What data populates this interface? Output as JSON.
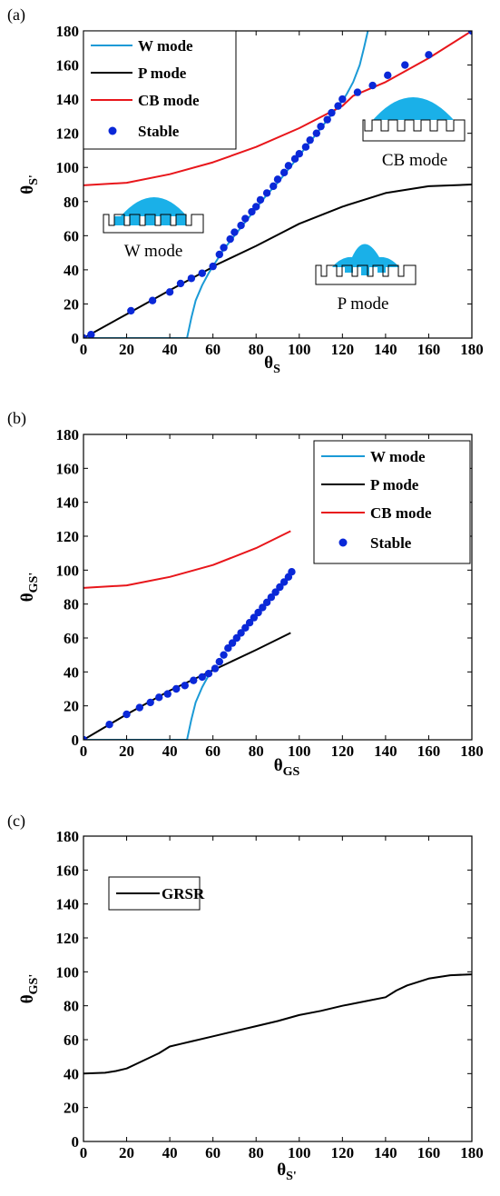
{
  "chart_data": [
    {
      "panel_label": "(a)",
      "type": "line",
      "xlabel": "θS",
      "ylabel": "θS'",
      "xlim": [
        0,
        180
      ],
      "ylim": [
        0,
        180
      ],
      "xticks": [
        0,
        20,
        40,
        60,
        80,
        100,
        120,
        140,
        160,
        180
      ],
      "yticks": [
        0,
        20,
        40,
        60,
        80,
        100,
        120,
        140,
        160,
        180
      ],
      "legend": "top-left",
      "series": [
        {
          "name": "W mode",
          "color": "#1b9ad6",
          "style": "line",
          "x": [
            0,
            48,
            48.5,
            50,
            52,
            55,
            58,
            60,
            65,
            70,
            75,
            80,
            85,
            90,
            95,
            100,
            105,
            110,
            115,
            120,
            122,
            125,
            128,
            130,
            131.8
          ],
          "y": [
            0,
            0,
            3,
            12,
            22,
            31,
            38,
            42,
            52,
            60,
            68,
            76,
            84,
            91,
            99,
            107,
            115,
            123,
            131,
            139,
            143,
            150,
            160,
            170,
            180
          ]
        },
        {
          "name": "P mode",
          "color": "#000000",
          "style": "line",
          "x": [
            0,
            20,
            40,
            59,
            60,
            80,
            100,
            120,
            140,
            160,
            180
          ],
          "y": [
            0,
            14,
            28,
            41,
            42,
            54,
            67,
            77,
            85,
            89,
            90
          ]
        },
        {
          "name": "CB mode",
          "color": "#e8161b",
          "style": "line",
          "x": [
            0,
            20,
            40,
            60,
            80,
            100,
            120,
            125,
            140,
            160,
            180
          ],
          "y": [
            89.5,
            91,
            96,
            103,
            112,
            123,
            136,
            142,
            150,
            164,
            180
          ]
        },
        {
          "name": "Stable",
          "color": "#0a28d8",
          "style": "markers",
          "x": [
            0,
            3.5,
            22,
            32,
            40,
            45,
            50,
            55,
            60,
            63,
            65,
            68,
            70,
            73,
            75,
            78,
            80,
            82,
            85,
            88,
            90,
            93,
            95,
            98,
            100,
            103,
            105,
            108,
            110,
            113,
            115,
            118,
            120,
            127,
            134,
            141,
            149,
            160,
            180
          ],
          "y": [
            0,
            2,
            16,
            22,
            27,
            32,
            35,
            38,
            42,
            49,
            53,
            58,
            62,
            66,
            70,
            74,
            77,
            81,
            85,
            89,
            93,
            97,
            101,
            105,
            108,
            112,
            116,
            120,
            124,
            128,
            132,
            136,
            140,
            144,
            148,
            154,
            160,
            166,
            180
          ]
        }
      ],
      "insets": [
        {
          "label": "W mode",
          "fill": "#1ab0e8"
        },
        {
          "label": "CB mode",
          "fill": "#1ab0e8"
        },
        {
          "label": "P mode",
          "fill": "#1ab0e8"
        }
      ]
    },
    {
      "panel_label": "(b)",
      "type": "line",
      "xlabel": "θGS",
      "ylabel": "θGS'",
      "xlim": [
        0,
        180
      ],
      "ylim": [
        0,
        180
      ],
      "xticks": [
        0,
        20,
        40,
        60,
        80,
        100,
        120,
        140,
        160,
        180
      ],
      "yticks": [
        0,
        20,
        40,
        60,
        80,
        100,
        120,
        140,
        160,
        180
      ],
      "legend": "top-right",
      "series": [
        {
          "name": "W mode",
          "color": "#1b9ad6",
          "style": "line",
          "x": [
            0,
            48,
            48.5,
            50,
            52,
            55,
            58,
            60
          ],
          "y": [
            0,
            0,
            3,
            12,
            22,
            31,
            38,
            42
          ]
        },
        {
          "name": "P mode",
          "color": "#000000",
          "style": "line",
          "x": [
            0,
            20,
            40,
            60,
            80,
            96
          ],
          "y": [
            0,
            15,
            29,
            41,
            53,
            63
          ]
        },
        {
          "name": "CB mode",
          "color": "#e8161b",
          "style": "line",
          "x": [
            0,
            20,
            40,
            60,
            80,
            96
          ],
          "y": [
            89.5,
            91,
            96,
            103,
            113,
            123
          ]
        },
        {
          "name": "Stable",
          "color": "#0a28d8",
          "style": "markers",
          "x": [
            0,
            12,
            20,
            26,
            31,
            35,
            39,
            43,
            47,
            51,
            55,
            58,
            61,
            63,
            65,
            67,
            69,
            71,
            73,
            75,
            77,
            79,
            81,
            83,
            85,
            87,
            89,
            91,
            93,
            95,
            96.5
          ],
          "y": [
            0,
            9,
            15,
            19,
            22,
            25,
            27,
            30,
            32,
            35,
            37,
            39,
            42,
            46,
            50,
            54,
            57,
            60,
            63,
            66,
            69,
            72,
            75,
            78,
            81,
            84,
            87,
            90,
            93,
            96,
            99
          ]
        }
      ]
    },
    {
      "panel_label": "(c)",
      "type": "line",
      "xlabel": "θS'",
      "ylabel": "θGS'",
      "xlim": [
        0,
        180
      ],
      "ylim": [
        0,
        180
      ],
      "xticks": [
        0,
        20,
        40,
        60,
        80,
        100,
        120,
        140,
        160,
        180
      ],
      "yticks": [
        0,
        20,
        40,
        60,
        80,
        100,
        120,
        140,
        160,
        180
      ],
      "legend": "top-left",
      "series": [
        {
          "name": "GRSR",
          "color": "#000000",
          "style": "line",
          "x": [
            0,
            10,
            15,
            20,
            25,
            30,
            35,
            40,
            45,
            50,
            60,
            70,
            80,
            90,
            100,
            110,
            120,
            130,
            140,
            145,
            150,
            160,
            170,
            180
          ],
          "y": [
            40,
            40.5,
            41.5,
            43,
            46,
            49,
            52,
            56,
            57.5,
            59,
            62,
            65,
            68,
            71,
            74.5,
            77,
            80,
            82.5,
            85,
            89,
            92,
            96,
            98,
            98.5
          ]
        }
      ]
    }
  ]
}
